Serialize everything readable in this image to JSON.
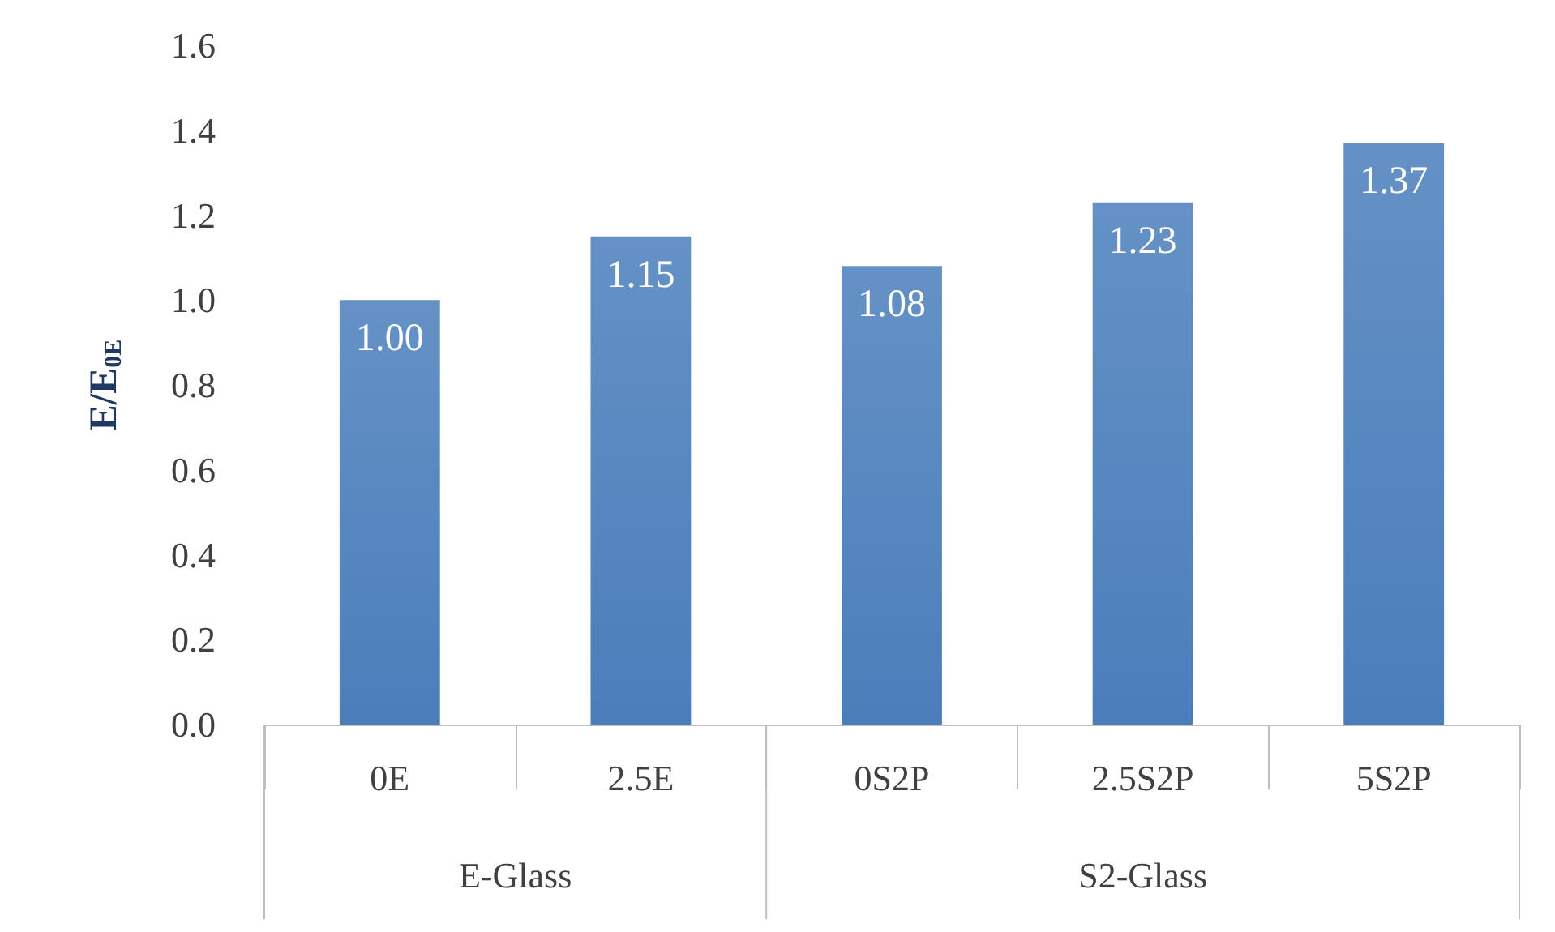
{
  "chart_data": {
    "type": "bar",
    "categories": [
      "0E",
      "2.5E",
      "0S2P",
      "2.5S2P",
      "5S2P"
    ],
    "values": [
      1.0,
      1.15,
      1.08,
      1.23,
      1.37
    ],
    "value_labels": [
      "1.00",
      "1.15",
      "1.08",
      "1.23",
      "1.37"
    ],
    "color": "#4a7ebb",
    "ylabel": "E/E$_{0E}$",
    "ylim": [
      0,
      1.6
    ],
    "yticks": [
      {
        "value": 0,
        "label": "0.0"
      },
      0.2,
      0.4,
      0.6,
      0.8,
      {
        "value": 1,
        "label": "1.0"
      },
      1.2,
      1.4,
      1.6
    ],
    "annotations": [
      "E-Glass",
      "S2-Glass"
    ],
    "grid": false
  }
}
